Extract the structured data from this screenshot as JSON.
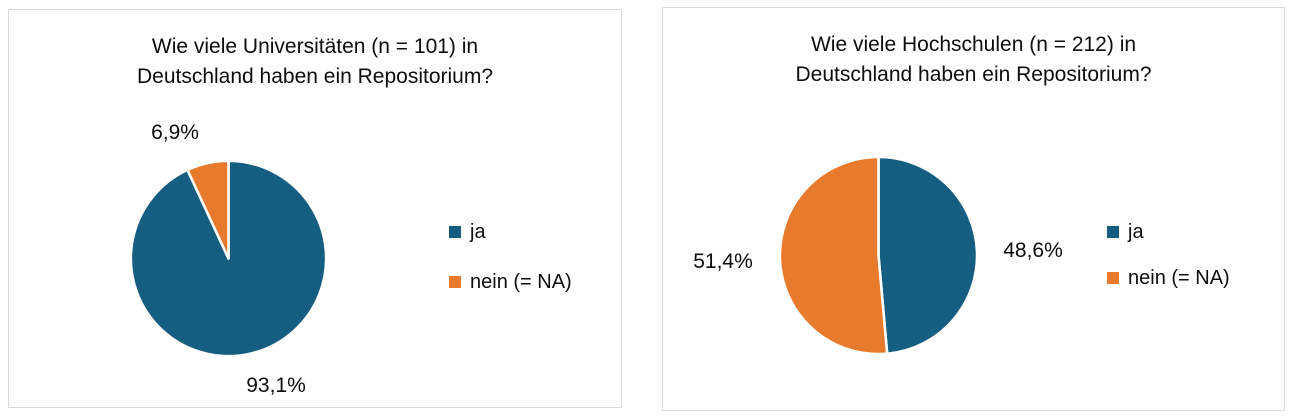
{
  "colors": {
    "ja_blue": "#155e82",
    "nein_orange": "#e87a2d",
    "panel_border": "#d9d9d9",
    "slice_separator": "#ffffff",
    "text": "#0d0d0d",
    "background": "#ffffff"
  },
  "chart_data": [
    {
      "type": "pie",
      "title": "Wie viele Universitäten (n = 101) in Deutschland haben ein Repositorium?",
      "title_lines": [
        "Wie viele Universitäten (n = 101) in",
        "Deutschland haben ein Repositorium?"
      ],
      "labels": [
        "ja",
        "nein (= NA)"
      ],
      "values": [
        93.1,
        6.9
      ],
      "value_labels": [
        "93,1%",
        "6,9%"
      ],
      "colors": [
        "#155e82",
        "#e87a2d"
      ],
      "start_angle_deg": 0,
      "direction": "clockwise",
      "legend_position": "right"
    },
    {
      "type": "pie",
      "title": "Wie viele Hochschulen (n = 212) in Deutschland haben ein Repositorium?",
      "title_lines": [
        "Wie viele Hochschulen (n = 212) in",
        "Deutschland haben ein Repositorium?"
      ],
      "labels": [
        "ja",
        "nein (= NA)"
      ],
      "values": [
        48.6,
        51.4
      ],
      "value_labels": [
        "48,6%",
        "51,4%"
      ],
      "colors": [
        "#155e82",
        "#e87a2d"
      ],
      "start_angle_deg": 0,
      "direction": "clockwise",
      "legend_position": "right"
    }
  ]
}
